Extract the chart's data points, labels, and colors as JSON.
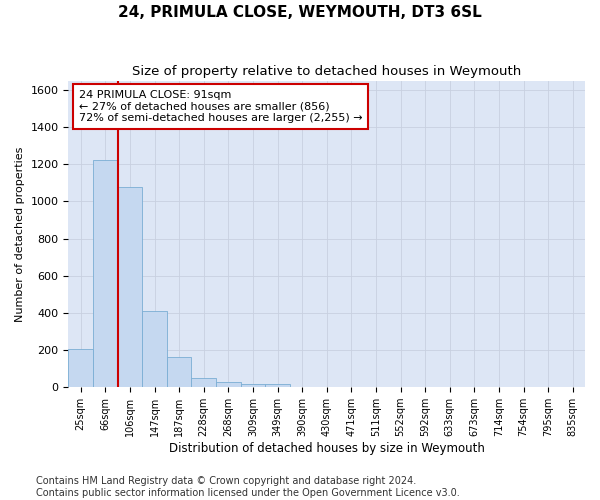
{
  "title": "24, PRIMULA CLOSE, WEYMOUTH, DT3 6SL",
  "subtitle": "Size of property relative to detached houses in Weymouth",
  "xlabel": "Distribution of detached houses by size in Weymouth",
  "ylabel": "Number of detached properties",
  "bin_labels": [
    "25sqm",
    "66sqm",
    "106sqm",
    "147sqm",
    "187sqm",
    "228sqm",
    "268sqm",
    "309sqm",
    "349sqm",
    "390sqm",
    "430sqm",
    "471sqm",
    "511sqm",
    "552sqm",
    "592sqm",
    "633sqm",
    "673sqm",
    "714sqm",
    "754sqm",
    "795sqm",
    "835sqm"
  ],
  "bar_values": [
    205,
    1225,
    1075,
    410,
    160,
    50,
    27,
    20,
    15,
    0,
    0,
    0,
    0,
    0,
    0,
    0,
    0,
    0,
    0,
    0,
    0
  ],
  "bar_color": "#c5d8f0",
  "bar_edge_color": "#7aadd4",
  "vline_color": "#cc0000",
  "vline_x": 1.5,
  "annotation_text": "24 PRIMULA CLOSE: 91sqm\n← 27% of detached houses are smaller (856)\n72% of semi-detached houses are larger (2,255) →",
  "annotation_box_color": "#ffffff",
  "annotation_box_edge_color": "#cc0000",
  "ylim": [
    0,
    1650
  ],
  "yticks": [
    0,
    200,
    400,
    600,
    800,
    1000,
    1200,
    1400,
    1600
  ],
  "grid_color": "#c8d0e0",
  "background_color": "#dde6f5",
  "footer_text": "Contains HM Land Registry data © Crown copyright and database right 2024.\nContains public sector information licensed under the Open Government Licence v3.0.",
  "title_fontsize": 11,
  "subtitle_fontsize": 9.5,
  "xlabel_fontsize": 8.5,
  "ylabel_fontsize": 8,
  "annot_fontsize": 8,
  "tick_fontsize": 7,
  "footer_fontsize": 7
}
